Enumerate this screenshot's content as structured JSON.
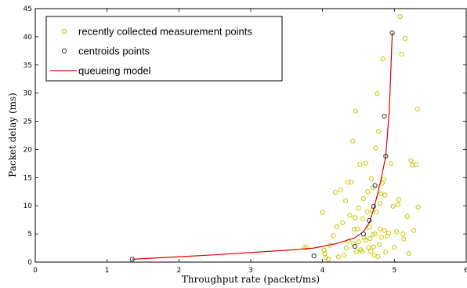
{
  "chart_data": {
    "type": "scatter",
    "xlabel": "Throughput rate (packet/ms)",
    "ylabel": "Packet delay (ms)",
    "xlim": [
      0,
      6
    ],
    "ylim": [
      0,
      45
    ],
    "xticks": [
      "0",
      "1",
      "2",
      "3",
      "4",
      "5",
      "6"
    ],
    "yticks": [
      "0",
      "5",
      "10",
      "15",
      "20",
      "25",
      "30",
      "35",
      "40",
      "45"
    ],
    "grid": false,
    "legend_position": "top-left",
    "series": [
      {
        "name": "recently collected measurement points",
        "style": "marker",
        "color": "#c8c800",
        "points": [
          [
            3.75,
            2.6
          ],
          [
            3.78,
            2.6
          ],
          [
            4.0,
            8.8
          ],
          [
            4.02,
            2.1
          ],
          [
            4.03,
            1.5
          ],
          [
            4.05,
            0.8
          ],
          [
            4.08,
            0.5
          ],
          [
            4.1,
            3.0
          ],
          [
            4.15,
            4.7
          ],
          [
            4.18,
            12.4
          ],
          [
            4.2,
            6.3
          ],
          [
            4.22,
            0.9
          ],
          [
            4.25,
            12.8
          ],
          [
            4.28,
            7.0
          ],
          [
            4.3,
            1.2
          ],
          [
            4.32,
            10.9
          ],
          [
            4.33,
            2.5
          ],
          [
            4.35,
            14.2
          ],
          [
            4.36,
            3.7
          ],
          [
            4.38,
            8.3
          ],
          [
            4.4,
            14.2
          ],
          [
            4.42,
            21.5
          ],
          [
            4.43,
            3.3
          ],
          [
            4.44,
            5.8
          ],
          [
            4.45,
            7.9
          ],
          [
            4.46,
            26.8
          ],
          [
            4.47,
            1.8
          ],
          [
            4.48,
            5.9
          ],
          [
            4.5,
            3.6
          ],
          [
            4.5,
            9.6
          ],
          [
            4.52,
            17.3
          ],
          [
            4.53,
            2.2
          ],
          [
            4.55,
            1.9
          ],
          [
            4.56,
            7.7
          ],
          [
            4.57,
            11.3
          ],
          [
            4.58,
            4.3
          ],
          [
            4.6,
            3.9
          ],
          [
            4.6,
            17.6
          ],
          [
            4.62,
            8.9
          ],
          [
            4.63,
            12.5
          ],
          [
            4.64,
            2.6
          ],
          [
            4.65,
            6.2
          ],
          [
            4.66,
            4.2
          ],
          [
            4.67,
            1.9
          ],
          [
            4.68,
            14.8
          ],
          [
            4.69,
            9.2
          ],
          [
            4.7,
            13.2
          ],
          [
            4.7,
            4.9
          ],
          [
            4.71,
            2.7
          ],
          [
            4.72,
            1.2
          ],
          [
            4.73,
            5.0
          ],
          [
            4.74,
            20.3
          ],
          [
            4.75,
            8.9
          ],
          [
            4.76,
            29.9
          ],
          [
            4.77,
            1.0
          ],
          [
            4.78,
            23.2
          ],
          [
            4.79,
            3.1
          ],
          [
            4.8,
            10.4
          ],
          [
            4.8,
            5.9
          ],
          [
            4.81,
            12.1
          ],
          [
            4.82,
            4.4
          ],
          [
            4.83,
            14.0
          ],
          [
            4.84,
            36.1
          ],
          [
            4.85,
            14.7
          ],
          [
            4.86,
            5.6
          ],
          [
            4.87,
            11.9
          ],
          [
            4.88,
            1.8
          ],
          [
            4.9,
            4.6
          ],
          [
            4.92,
            5.2
          ],
          [
            4.95,
            17.5
          ],
          [
            4.98,
            9.9
          ],
          [
            5.0,
            2.6
          ],
          [
            5.03,
            5.4
          ],
          [
            5.05,
            10.2
          ],
          [
            5.06,
            11.1
          ],
          [
            5.08,
            43.6
          ],
          [
            5.1,
            36.9
          ],
          [
            5.12,
            5.0
          ],
          [
            5.13,
            4.1
          ],
          [
            5.15,
            39.7
          ],
          [
            5.18,
            8.1
          ],
          [
            5.2,
            1.5
          ],
          [
            5.23,
            18.0
          ],
          [
            5.25,
            17.2
          ],
          [
            5.27,
            5.6
          ],
          [
            5.3,
            17.3
          ],
          [
            5.32,
            27.2
          ],
          [
            5.33,
            9.8
          ]
        ]
      },
      {
        "name": "centroids points",
        "style": "marker",
        "color": "#1f3a2e",
        "points": [
          [
            1.35,
            0.5
          ],
          [
            3.88,
            1.1
          ],
          [
            4.45,
            2.8
          ],
          [
            4.57,
            5.0
          ],
          [
            4.65,
            7.4
          ],
          [
            4.71,
            9.9
          ],
          [
            4.73,
            13.6
          ],
          [
            4.86,
            25.9
          ],
          [
            4.88,
            18.8
          ],
          [
            4.97,
            40.7
          ]
        ]
      },
      {
        "name": "queueing model",
        "style": "line",
        "color": "#e00000",
        "points": [
          [
            1.35,
            0.5
          ],
          [
            2.5,
            1.3
          ],
          [
            3.5,
            2.1
          ],
          [
            3.88,
            2.5
          ],
          [
            4.2,
            3.3
          ],
          [
            4.45,
            4.3
          ],
          [
            4.57,
            5.4
          ],
          [
            4.65,
            7.0
          ],
          [
            4.71,
            9.4
          ],
          [
            4.76,
            11.8
          ],
          [
            4.82,
            15.0
          ],
          [
            4.88,
            18.8
          ],
          [
            4.93,
            27.0
          ],
          [
            4.97,
            40.7
          ]
        ]
      }
    ]
  }
}
